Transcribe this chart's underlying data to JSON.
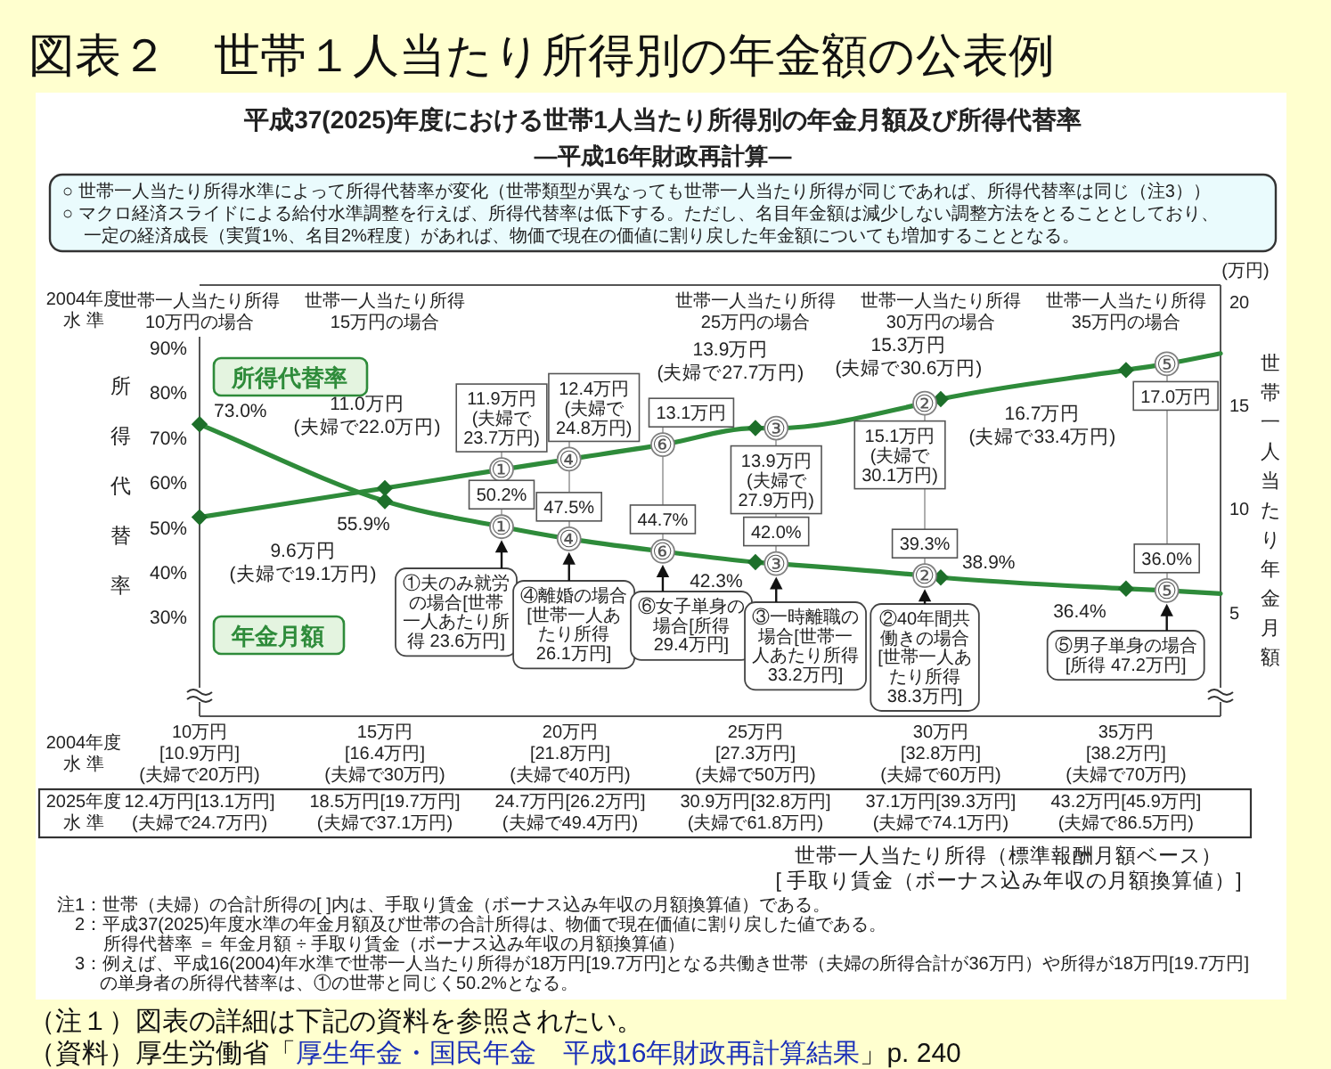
{
  "chart_data": {
    "type": "line",
    "title": "図表２　世帯１人当たり所得別の年金額の公表例",
    "subtitle": "平成37(2025)年度における世帯1人当たり所得別の年金月額及び所得代替率\n―平成16年財政再計算―",
    "ylabel": "所得代替率",
    "y2label": "世帯一人当たり年金月額",
    "xlim": [
      10,
      37.55
    ],
    "xticks": [
      {
        "value": 10,
        "label": "10万円"
      },
      {
        "value": 15,
        "label": "15万円"
      },
      {
        "value": 20,
        "label": "20万円"
      },
      {
        "value": 25,
        "label": "25万円"
      },
      {
        "value": 30,
        "label": "30万円"
      },
      {
        "value": 35,
        "label": "35万円"
      }
    ],
    "ylim": [
      8,
      104
    ],
    "yticks": [
      {
        "value": 30,
        "label": "30%"
      },
      {
        "value": 40,
        "label": "40%"
      },
      {
        "value": 50,
        "label": "50%"
      },
      {
        "value": 60,
        "label": "60%"
      },
      {
        "value": 70,
        "label": "70%"
      },
      {
        "value": 80,
        "label": "80%"
      },
      {
        "value": 90,
        "label": "90%"
      }
    ],
    "y2lim": [
      0,
      20.8
    ],
    "y2ticks": [
      5,
      10,
      15,
      20
    ],
    "series": [
      {
        "name": "所得代替率",
        "type": "line",
        "axis": "y",
        "color": "#2e8b3a",
        "marker": "none",
        "x": [
          10,
          15,
          18.15,
          19.97,
          22.5,
          25,
          25.56,
          29.57,
          30,
          35,
          36.1,
          37.55
        ],
        "values": [
          73.0,
          55.9,
          50.2,
          47.5,
          44.7,
          42.3,
          42.0,
          39.3,
          38.9,
          36.4,
          36.0,
          35.3
        ],
        "value_labels": [
          "73.0%",
          "55.9%",
          "50.2%",
          "47.5%",
          "44.7%",
          "42.3%",
          "42.0%",
          "39.3%",
          "38.9%",
          "36.4%",
          "36.0%",
          null
        ]
      },
      {
        "name": "年金月額",
        "type": "line",
        "axis": "y2",
        "color": "#2e8b3a",
        "marker": "none",
        "x": [
          10,
          15,
          18.15,
          19.97,
          22.5,
          25,
          25.56,
          29.57,
          30,
          35,
          36.1,
          37.55
        ],
        "values": [
          9.6,
          11.0,
          11.9,
          12.4,
          13.1,
          13.9,
          13.9,
          15.1,
          15.3,
          16.7,
          17.0,
          17.5
        ],
        "value_labels": [
          "9.6万円\n(夫婦で19.1万円)",
          "11.0万円\n(夫婦で22.0万円)",
          "11.9万円\n(夫婦で\n23.7万円)",
          "12.4万円\n(夫婦で\n24.8万円)",
          "13.1万円",
          "13.9万円\n(夫婦で27.7万円)",
          "13.9万円\n(夫婦で\n27.9万円)",
          "15.1万円\n(夫婦で\n30.1万円)",
          "15.3万円\n(夫婦で30.6万円)",
          "16.7万円\n(夫婦で33.4万円)",
          "17.0万円",
          null
        ]
      },
      {
        "type": "scatter",
        "axis": "y",
        "color": "#1d6f2a",
        "marker": "diamond",
        "x": [
          10,
          15,
          25,
          30,
          35
        ],
        "values": [
          73.0,
          55.9,
          42.3,
          38.9,
          36.4
        ]
      },
      {
        "type": "scatter",
        "axis": "y2",
        "color": "#1d6f2a",
        "marker": "diamond",
        "x": [
          10,
          15,
          25,
          30,
          35
        ],
        "values": [
          9.6,
          11.0,
          13.9,
          15.3,
          16.7
        ]
      },
      {
        "type": "scatter",
        "axis": "y",
        "color": "#808080",
        "marker": "circle",
        "x": [
          18.15,
          19.97,
          22.5,
          25.56,
          29.57,
          36.1
        ],
        "values": [
          50.2,
          47.5,
          44.7,
          42.0,
          39.3,
          36.0
        ],
        "value_labels": [
          "①",
          "④",
          "⑥",
          "③",
          "②",
          "⑤"
        ]
      },
      {
        "type": "scatter",
        "axis": "y2",
        "color": "#808080",
        "marker": "circle",
        "x": [
          18.15,
          19.97,
          22.5,
          25.56,
          29.57,
          36.1
        ],
        "values": [
          11.9,
          12.4,
          13.1,
          13.9,
          15.1,
          17.0
        ],
        "value_labels": [
          "①",
          "④",
          "⑥",
          "③",
          "②",
          "⑤"
        ]
      }
    ],
    "annotations": [
      "○ 世帯一人当たり所得水準によって所得代替率が変化（世帯類型が異なっても世帯一人当たり所得が同じであれば、所得代替率は同じ（注3））",
      "○ マクロ経済スライドによる給付水準調整を行えば、所得代替率は低下する。ただし、名目年金額は減少しない調整方法をとることとしており、一定の経済成長（実質1%、名目2%程度）があれば、物価で現在の価値に割り戻した年金額についても増加することとなる。",
      "(万円)",
      "2004年度水 準",
      "世帯一人当たり所得\n10万円の場合",
      "世帯一人当たり所得\n15万円の場合",
      "世帯一人当たり所得\n25万円の場合",
      "世帯一人当たり所得\n30万円の場合",
      "世帯一人当たり所得\n35万円の場合",
      "2004年度水 準",
      "[10.9万円]\n(夫婦で20万円)",
      "[16.4万円]\n(夫婦で30万円)",
      "[21.8万円]\n(夫婦で40万円)",
      "[27.3万円]\n(夫婦で50万円)",
      "[32.8万円]\n(夫婦で60万円)",
      "[38.2万円]\n(夫婦で70万円)",
      "2025年度水 準",
      "12.4万円[13.1万円]\n(夫婦で24.7万円)",
      "18.5万円[19.7万円]\n(夫婦で37.1万円)",
      "24.7万円[26.2万円]\n(夫婦で49.4万円)",
      "30.9万円[32.8万円]\n(夫婦で61.8万円)",
      "37.1万円[39.3万円]\n(夫婦で74.1万円)",
      "43.2万円[45.9万円]\n(夫婦で86.5万円)",
      "世帯一人当たり所得（標準報酬月額ベース）\n[ 手取り賃金（ボーナス込み年収の月額換算値）]",
      "注1：世帯（夫婦）の合計所得の[ ]内は、手取り賃金（ボーナス込み年収の月額換算値）である。",
      "2：平成37(2025)年度水準の年金月額及び世帯の合計所得は、物価で現在価値に割り戻した値である。",
      "所得代替率 ＝ 年金月額 ÷ 手取り賃金（ボーナス込み年収の月額換算値）",
      "3：例えば、平成16(2004)年水準で世帯一人当たり所得が18万円[19.7万円]となる共働き世帯（夫婦の所得合計が36万円）や所得が18万円[19.7万円]\nの単身者の所得代替率は、①の世帯と同じく50.2%となる。",
      "（注１）図表の詳細は下記の資料を参照されたい。",
      "（資料）厚生労働省「",
      "厚生年金・国民年金　平成16年財政再計算結果",
      "」p. 240",
      {
        "text": "①夫のみ就労の場合[世帯一人あたり所得 23.6万円]",
        "x": 18.15,
        "y": 50.2
      },
      {
        "text": "④離婚の場合[世帯一人あたり所得 26.1万円]",
        "x": 19.97,
        "y": 47.5
      },
      {
        "text": "⑥女子単身の場合[所得 29.4万円]",
        "x": 22.5,
        "y": 44.7
      },
      {
        "text": "③一時離職の場合[世帯一人あたり所得 33.2万円]",
        "x": 25.56,
        "y": 42.0
      },
      {
        "text": "②40年間共働きの場合[世帯一人あたり所得 38.3万円]",
        "x": 29.57,
        "y": 39.3
      },
      {
        "text": "⑤男子単身の場合[所得 47.2万円]",
        "x": 36.1,
        "y": 36.0
      }
    ]
  }
}
